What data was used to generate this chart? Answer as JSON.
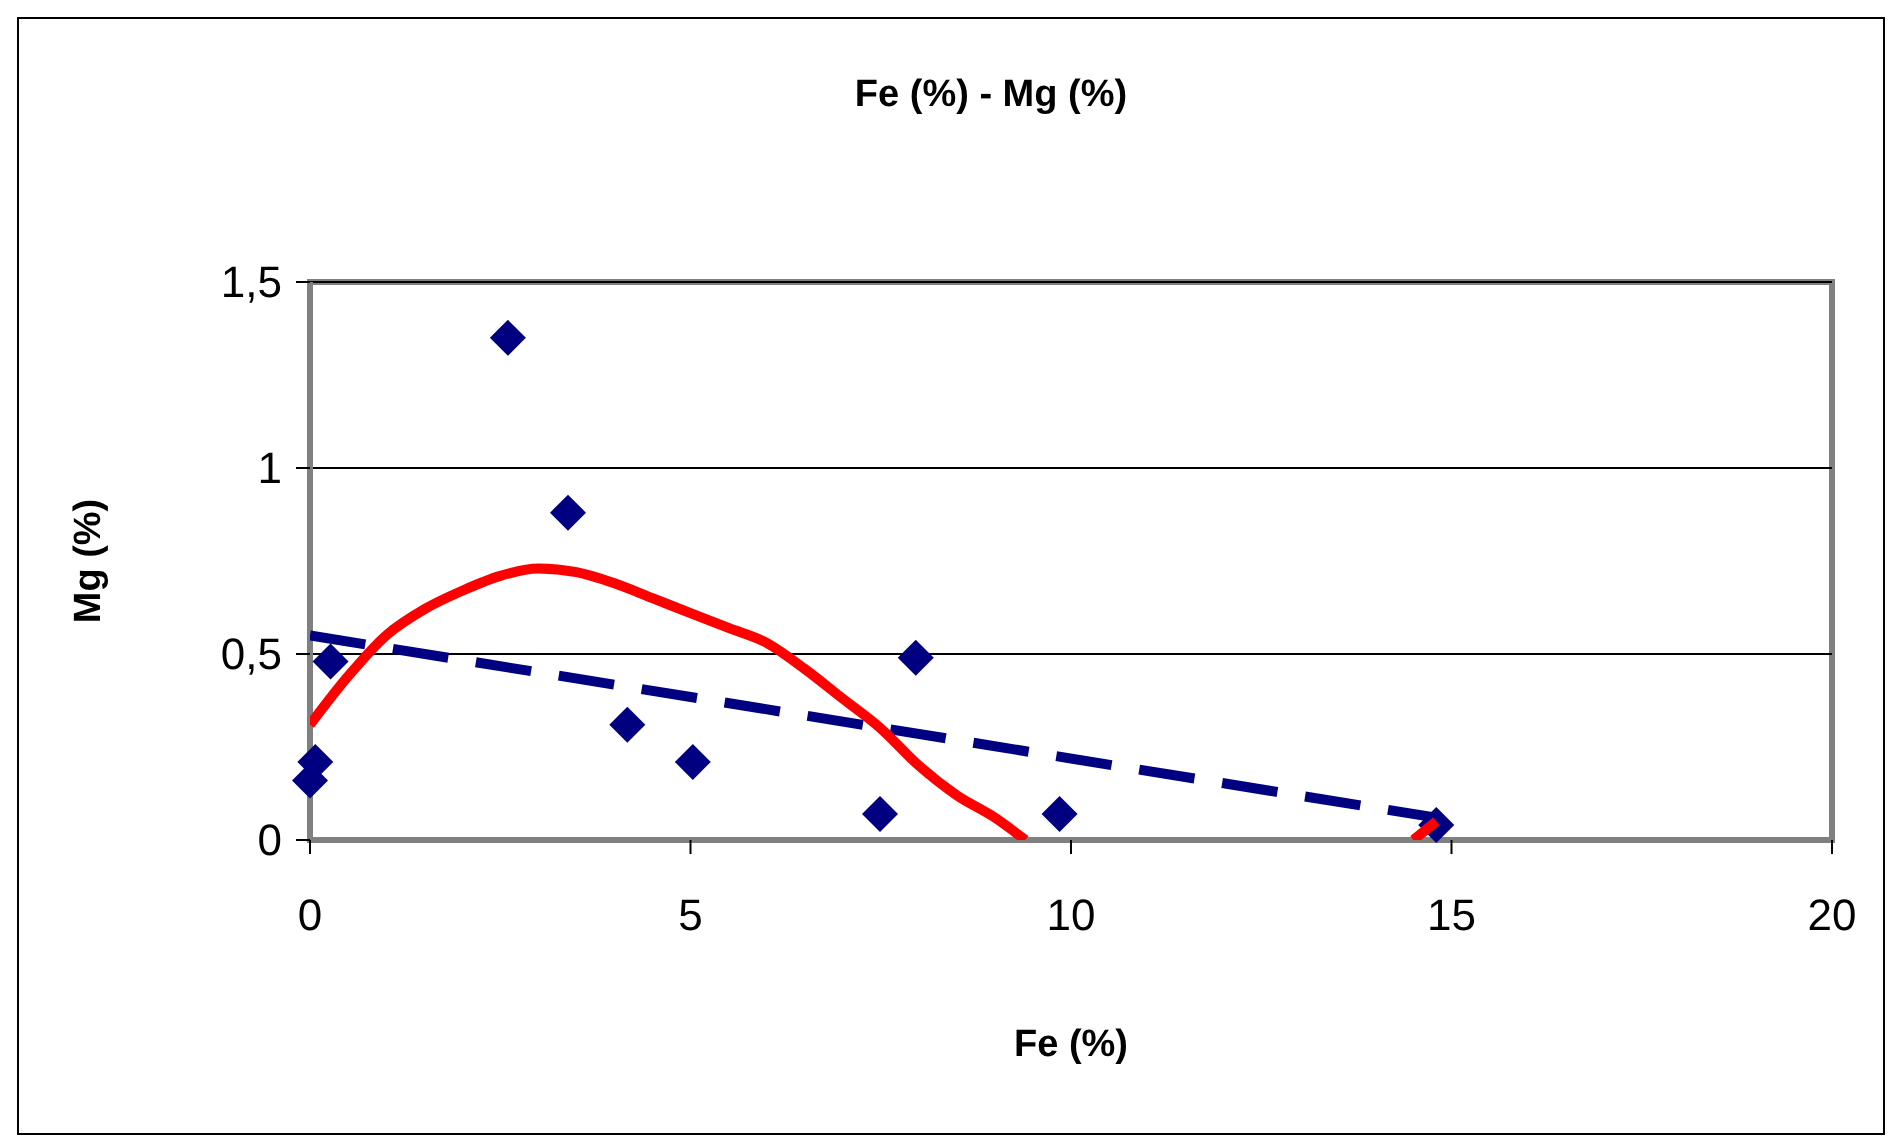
{
  "chart_data": {
    "type": "scatter",
    "title": "Fe (%) - Mg (%)",
    "xlabel": "Fe (%)",
    "ylabel": "Mg (%)",
    "xlim": [
      0,
      20
    ],
    "xticks": [
      0,
      5,
      10,
      15,
      20
    ],
    "ylim": [
      0,
      1.5
    ],
    "yticks": [
      0,
      {
        "value": 0.5,
        "label": "0,5"
      },
      1,
      {
        "value": 1.5,
        "label": "1,5"
      }
    ],
    "grid": "y",
    "marker": "diamond",
    "series": [
      {
        "color": "#000080",
        "x": [
          0,
          0.07,
          0.27,
          2.6,
          3.39,
          4.17,
          5.03,
          7.49,
          7.96,
          9.85,
          14.8
        ],
        "values": [
          0.16,
          0.21,
          0.48,
          1.35,
          0.88,
          0.31,
          0.21,
          0.07,
          0.49,
          0.07,
          0.04
        ]
      },
      {
        "type": "line",
        "color": "#000080",
        "line_style": "dashed",
        "marker": "none",
        "x": [
          0,
          14.8
        ],
        "values": [
          0.55,
          0.06
        ]
      },
      {
        "type": "line",
        "color": "#ff0000",
        "line_style": "solid",
        "marker": "none",
        "x": [
          0,
          0.5,
          1,
          1.5,
          2,
          2.5,
          3,
          3.5,
          4,
          4.5,
          5,
          5.5,
          6,
          6.5,
          7,
          7.5,
          8,
          8.5,
          9,
          9.4,
          12,
          14.5,
          14.8
        ],
        "values": [
          0.31,
          0.44,
          0.55,
          0.62,
          0.67,
          0.71,
          0.73,
          0.72,
          0.69,
          0.65,
          0.61,
          0.57,
          0.53,
          0.46,
          0.38,
          0.3,
          0.2,
          0.12,
          0.06,
          0,
          null,
          0,
          0.05
        ]
      }
    ]
  }
}
